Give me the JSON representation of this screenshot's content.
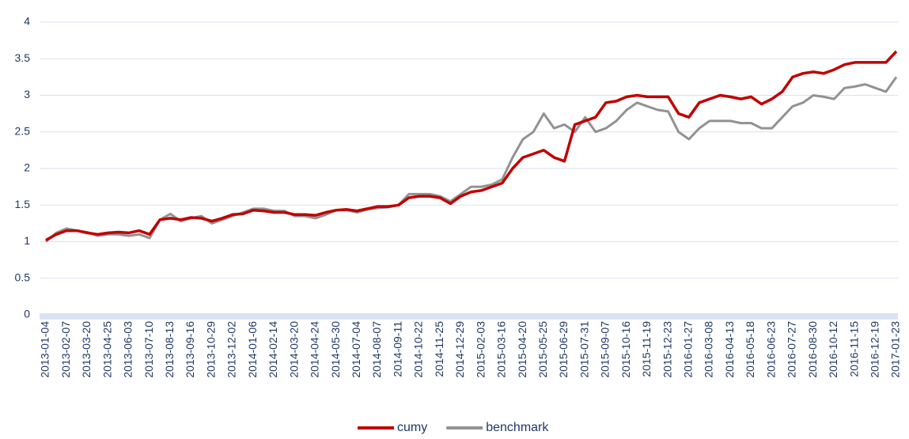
{
  "chart_data": {
    "type": "line",
    "categories": [
      "2013-01-04",
      null,
      "2013-02-07",
      null,
      "2013-03-20",
      null,
      "2013-04-25",
      null,
      "2013-06-03",
      null,
      "2013-07-10",
      null,
      "2013-08-13",
      null,
      "2013-09-16",
      null,
      "2013-10-29",
      null,
      "2013-12-02",
      null,
      "2014-01-06",
      null,
      "2014-02-14",
      null,
      "2014-03-20",
      null,
      "2014-04-24",
      null,
      "2014-05-30",
      null,
      "2014-07-04",
      null,
      "2014-08-07",
      null,
      "2014-09-11",
      null,
      "2014-10-22",
      null,
      "2014-11-25",
      null,
      "2014-12-29",
      null,
      "2015-02-03",
      null,
      "2015-03-16",
      null,
      "2015-04-20",
      null,
      "2015-05-25",
      null,
      "2015-06-29",
      null,
      "2015-07-31",
      null,
      "2015-09-07",
      null,
      "2015-10-16",
      null,
      "2015-11-19",
      null,
      "2015-12-23",
      null,
      "2016-01-27",
      null,
      "2016-03-08",
      null,
      "2016-04-13",
      null,
      "2016-05-18",
      null,
      "2016-06-23",
      null,
      "2016-07-27",
      null,
      "2016-08-30",
      null,
      "2016-10-12",
      null,
      "2016-11-15",
      null,
      "2016-12-19",
      null,
      "2017-01-23"
    ],
    "series": [
      {
        "name": "cumy",
        "color": "#c00000",
        "values": [
          1.02,
          1.1,
          1.15,
          1.15,
          1.12,
          1.1,
          1.12,
          1.13,
          1.12,
          1.15,
          1.1,
          1.3,
          1.32,
          1.3,
          1.33,
          1.32,
          1.28,
          1.32,
          1.37,
          1.38,
          1.43,
          1.42,
          1.4,
          1.4,
          1.37,
          1.37,
          1.36,
          1.4,
          1.43,
          1.44,
          1.42,
          1.45,
          1.48,
          1.48,
          1.5,
          1.6,
          1.62,
          1.62,
          1.6,
          1.52,
          1.62,
          1.68,
          1.7,
          1.75,
          1.8,
          2.0,
          2.15,
          2.2,
          2.25,
          2.15,
          2.1,
          2.6,
          2.65,
          2.7,
          2.9,
          2.92,
          2.98,
          3.0,
          2.98,
          2.98,
          2.98,
          2.75,
          2.7,
          2.9,
          2.95,
          3.0,
          2.98,
          2.95,
          2.98,
          2.88,
          2.95,
          3.05,
          3.25,
          3.3,
          3.32,
          3.3,
          3.35,
          3.42,
          3.45,
          3.45,
          3.45,
          3.45,
          3.6
        ]
      },
      {
        "name": "benchmark",
        "color": "#929292",
        "values": [
          1.0,
          1.12,
          1.18,
          1.15,
          1.13,
          1.08,
          1.1,
          1.1,
          1.08,
          1.1,
          1.05,
          1.3,
          1.38,
          1.28,
          1.32,
          1.35,
          1.25,
          1.3,
          1.35,
          1.4,
          1.45,
          1.45,
          1.42,
          1.42,
          1.35,
          1.35,
          1.32,
          1.37,
          1.43,
          1.43,
          1.4,
          1.44,
          1.46,
          1.47,
          1.5,
          1.65,
          1.65,
          1.65,
          1.62,
          1.55,
          1.65,
          1.75,
          1.75,
          1.78,
          1.85,
          2.15,
          2.4,
          2.5,
          2.75,
          2.55,
          2.6,
          2.5,
          2.7,
          2.5,
          2.55,
          2.65,
          2.8,
          2.9,
          2.85,
          2.8,
          2.78,
          2.5,
          2.4,
          2.55,
          2.65,
          2.65,
          2.65,
          2.62,
          2.62,
          2.55,
          2.55,
          2.7,
          2.85,
          2.9,
          3.0,
          2.98,
          2.95,
          3.1,
          3.12,
          3.15,
          3.1,
          3.05,
          3.25
        ]
      }
    ],
    "ylim": [
      0,
      4
    ],
    "yticks": [
      0,
      0.5,
      1,
      1.5,
      2,
      2.5,
      3,
      3.5,
      4
    ],
    "grid": true,
    "legend": "bottom"
  }
}
